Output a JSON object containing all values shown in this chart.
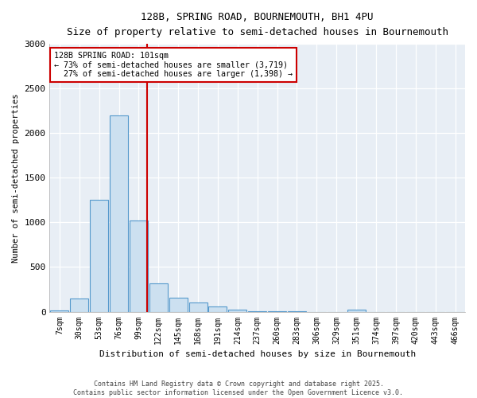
{
  "title1": "128B, SPRING ROAD, BOURNEMOUTH, BH1 4PU",
  "title2": "Size of property relative to semi-detached houses in Bournemouth",
  "xlabel": "Distribution of semi-detached houses by size in Bournemouth",
  "ylabel": "Number of semi-detached properties",
  "bar_color": "#cce0f0",
  "bar_edge_color": "#5599cc",
  "background_color": "#e8eef5",
  "categories": [
    "7sqm",
    "30sqm",
    "53sqm",
    "76sqm",
    "99sqm",
    "122sqm",
    "145sqm",
    "168sqm",
    "191sqm",
    "214sqm",
    "237sqm",
    "260sqm",
    "283sqm",
    "306sqm",
    "329sqm",
    "351sqm",
    "374sqm",
    "397sqm",
    "420sqm",
    "443sqm",
    "466sqm"
  ],
  "values": [
    10,
    150,
    1250,
    2200,
    1020,
    320,
    155,
    100,
    55,
    20,
    5,
    5,
    5,
    0,
    0,
    20,
    0,
    0,
    0,
    0,
    0
  ],
  "vline_x": 4.425,
  "vline_color": "#cc0000",
  "marker_label": "128B SPRING ROAD: 101sqm",
  "pct_smaller": 73,
  "pct_larger": 27,
  "count_smaller": 3719,
  "count_larger": 1398,
  "annotation_box_color": "#ffffff",
  "annotation_box_edge": "#cc0000",
  "ylim": [
    0,
    3000
  ],
  "yticks": [
    0,
    500,
    1000,
    1500,
    2000,
    2500,
    3000
  ],
  "footer1": "Contains HM Land Registry data © Crown copyright and database right 2025.",
  "footer2": "Contains public sector information licensed under the Open Government Licence v3.0."
}
